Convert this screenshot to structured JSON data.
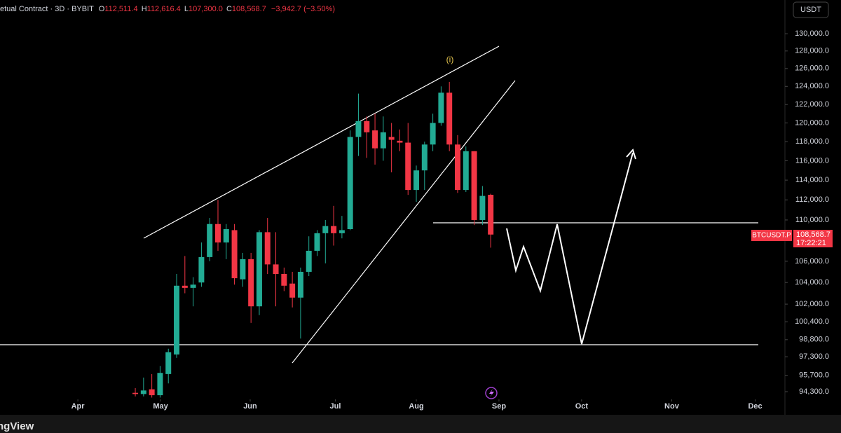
{
  "header": {
    "symbol": "etual Contract · 3D · BYBIT",
    "ohlc": [
      {
        "key": "O",
        "value": "112,511.4"
      },
      {
        "key": "H",
        "value": "112,616.4"
      },
      {
        "key": "L",
        "value": "107,300.0"
      },
      {
        "key": "C",
        "value": "108,568.7"
      }
    ],
    "change": "−3,942.7 (−3.50%)"
  },
  "currency_button": "USDT",
  "price_tag": {
    "symbol": "BTCUSDT.P",
    "price": "108,568.7",
    "countdown": "17:22:21"
  },
  "wave_label": "(i)",
  "footer_logo": "ngView",
  "chart_data": {
    "type": "candlestick",
    "log_scale": true,
    "up_color": "#22ab94",
    "down_color": "#f23645",
    "x": [
      0,
      1,
      2,
      3,
      4,
      5,
      6,
      7,
      8,
      9,
      10,
      11,
      12,
      13,
      14,
      15,
      16,
      17,
      18,
      19,
      20,
      21,
      22,
      23,
      24,
      25,
      26,
      27,
      28,
      29,
      30,
      31,
      32,
      33,
      34,
      35,
      36,
      37,
      38,
      39,
      40,
      41,
      42,
      43
    ],
    "open": [
      94200,
      94100,
      94500,
      94000,
      95800,
      97500,
      103700,
      103500,
      104000,
      106400,
      109600,
      107800,
      109000,
      104300,
      106200,
      101800,
      108800,
      105700,
      104800,
      103900,
      102600,
      105000,
      107000,
      108700,
      109400,
      108700,
      109100,
      118500,
      120200,
      119200,
      117300,
      118500,
      118100,
      117900,
      113000,
      115000,
      117700,
      120000,
      123300,
      117700,
      113000,
      117000,
      110000,
      112511.4
    ],
    "high": [
      94600,
      95500,
      95800,
      96500,
      98000,
      104800,
      106500,
      104500,
      107800,
      110200,
      112000,
      109600,
      109600,
      106800,
      106800,
      109000,
      110200,
      108800,
      105400,
      105000,
      105400,
      108400,
      109000,
      110000,
      111400,
      110400,
      119200,
      123200,
      120700,
      121000,
      120700,
      120000,
      119300,
      120000,
      115500,
      118000,
      121000,
      124000,
      124500,
      118700,
      117500,
      117000,
      113400,
      112616.4
    ],
    "low": [
      93900,
      93900,
      93800,
      93800,
      95000,
      97200,
      103000,
      101800,
      103600,
      106000,
      107000,
      106200,
      103800,
      103600,
      100300,
      101000,
      104800,
      101800,
      103200,
      101700,
      98900,
      104600,
      106500,
      105800,
      107500,
      108200,
      109000,
      116500,
      116300,
      115600,
      116000,
      114800,
      117000,
      112500,
      111800,
      113000,
      117000,
      119700,
      117000,
      112700,
      112800,
      109500,
      109500,
      107300
    ],
    "close": [
      94100,
      94400,
      94000,
      95900,
      97700,
      103700,
      103500,
      103800,
      106400,
      109600,
      107800,
      109100,
      104400,
      106200,
      101800,
      108800,
      105700,
      104800,
      103700,
      102600,
      105000,
      107000,
      108700,
      109400,
      108700,
      109000,
      118500,
      120200,
      119000,
      117300,
      119000,
      118200,
      117900,
      113000,
      115000,
      117700,
      120000,
      123300,
      117700,
      113000,
      117000,
      110000,
      112400,
      108568.7
    ],
    "xlim": [
      -16.37,
      78.6
    ],
    "xticks": [
      {
        "value": -6.95,
        "label": "Apr"
      },
      {
        "value": 3.05,
        "label": "May"
      },
      {
        "value": 13.9,
        "label": "Jun"
      },
      {
        "value": 24.2,
        "label": "Jul"
      },
      {
        "value": 34.0,
        "label": "Aug"
      },
      {
        "value": 44.0,
        "label": "Sep"
      },
      {
        "value": 54.0,
        "label": "Oct"
      },
      {
        "value": 64.9,
        "label": "Nov"
      },
      {
        "value": 75.0,
        "label": "Dec"
      }
    ],
    "ylim": [
      93650,
      133990
    ],
    "yticks": [
      {
        "value": 130000,
        "label": "130,000.0"
      },
      {
        "value": 128000,
        "label": "128,000.0"
      },
      {
        "value": 126000,
        "label": "126,000.0"
      },
      {
        "value": 124000,
        "label": "124,000.0"
      },
      {
        "value": 122000,
        "label": "122,000.0"
      },
      {
        "value": 120000,
        "label": "120,000.0"
      },
      {
        "value": 118000,
        "label": "118,000.0"
      },
      {
        "value": 116000,
        "label": "116,000.0"
      },
      {
        "value": 114000,
        "label": "114,000.0"
      },
      {
        "value": 112000,
        "label": "112,000.0"
      },
      {
        "value": 110000,
        "label": "110,000.0"
      },
      {
        "value": 106000,
        "label": "106,000.0"
      },
      {
        "value": 104000,
        "label": "104,000.0"
      },
      {
        "value": 102000,
        "label": "102,000.0"
      },
      {
        "value": 100400,
        "label": "100,400.0"
      },
      {
        "value": 98800,
        "label": "98,800.0"
      },
      {
        "value": 97300,
        "label": "97,300.0"
      },
      {
        "value": 95700,
        "label": "95,700.0"
      },
      {
        "value": 94300,
        "label": "94,300.0"
      }
    ]
  }
}
